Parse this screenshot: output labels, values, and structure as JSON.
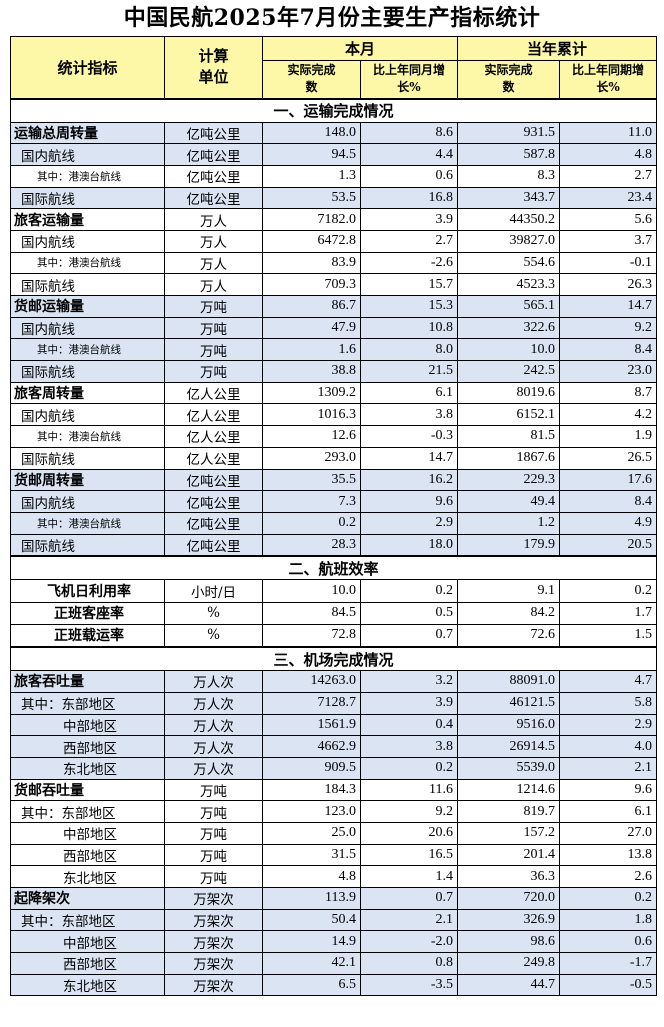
{
  "title": "中国民航2025年7月份主要生产指标统计",
  "header": {
    "col_indicator": "统计指标",
    "col_unit": "计算单位",
    "col_month": "本月",
    "col_ytd": "当年累计",
    "sub_actual": "实际完成数",
    "sub_growth_month": "比上年同月增长%",
    "sub_growth_ytd": "比上年同期增长%"
  },
  "sections": [
    {
      "title": "一、运输完成情况",
      "rows": [
        {
          "label": "运输总周转量",
          "level": "bold",
          "unit": "亿吨公里",
          "m_actual": "148.0",
          "m_growth": "8.6",
          "y_actual": "931.5",
          "y_growth": "11.0",
          "bg": "blue"
        },
        {
          "label": "国内航线",
          "level": "l1",
          "unit": "亿吨公里",
          "m_actual": "94.5",
          "m_growth": "4.4",
          "y_actual": "587.8",
          "y_growth": "4.8",
          "bg": "blue"
        },
        {
          "label": "其中：港澳台航线",
          "level": "l2",
          "unit": "亿吨公里",
          "m_actual": "1.3",
          "m_growth": "0.6",
          "y_actual": "8.3",
          "y_growth": "2.7",
          "bg": "white"
        },
        {
          "label": "国际航线",
          "level": "l1",
          "unit": "亿吨公里",
          "m_actual": "53.5",
          "m_growth": "16.8",
          "y_actual": "343.7",
          "y_growth": "23.4",
          "bg": "blue"
        },
        {
          "label": "旅客运输量",
          "level": "bold",
          "unit": "万人",
          "m_actual": "7182.0",
          "m_growth": "3.9",
          "y_actual": "44350.2",
          "y_growth": "5.6",
          "bg": "white"
        },
        {
          "label": "国内航线",
          "level": "l1",
          "unit": "万人",
          "m_actual": "6472.8",
          "m_growth": "2.7",
          "y_actual": "39827.0",
          "y_growth": "3.7",
          "bg": "white"
        },
        {
          "label": "其中：港澳台航线",
          "level": "l2",
          "unit": "万人",
          "m_actual": "83.9",
          "m_growth": "-2.6",
          "y_actual": "554.6",
          "y_growth": "-0.1",
          "bg": "white"
        },
        {
          "label": "国际航线",
          "level": "l1",
          "unit": "万人",
          "m_actual": "709.3",
          "m_growth": "15.7",
          "y_actual": "4523.3",
          "y_growth": "26.3",
          "bg": "white"
        },
        {
          "label": "货邮运输量",
          "level": "bold",
          "unit": "万吨",
          "m_actual": "86.7",
          "m_growth": "15.3",
          "y_actual": "565.1",
          "y_growth": "14.7",
          "bg": "blue"
        },
        {
          "label": "国内航线",
          "level": "l1",
          "unit": "万吨",
          "m_actual": "47.9",
          "m_growth": "10.8",
          "y_actual": "322.6",
          "y_growth": "9.2",
          "bg": "blue"
        },
        {
          "label": "其中：港澳台航线",
          "level": "l2",
          "unit": "万吨",
          "m_actual": "1.6",
          "m_growth": "8.0",
          "y_actual": "10.0",
          "y_growth": "8.4",
          "bg": "blue"
        },
        {
          "label": "国际航线",
          "level": "l1",
          "unit": "万吨",
          "m_actual": "38.8",
          "m_growth": "21.5",
          "y_actual": "242.5",
          "y_growth": "23.0",
          "bg": "blue"
        },
        {
          "label": "旅客周转量",
          "level": "bold",
          "unit": "亿人公里",
          "m_actual": "1309.2",
          "m_growth": "6.1",
          "y_actual": "8019.6",
          "y_growth": "8.7",
          "bg": "white"
        },
        {
          "label": "国内航线",
          "level": "l1",
          "unit": "亿人公里",
          "m_actual": "1016.3",
          "m_growth": "3.8",
          "y_actual": "6152.1",
          "y_growth": "4.2",
          "bg": "white"
        },
        {
          "label": "其中：港澳台航线",
          "level": "l2",
          "unit": "亿人公里",
          "m_actual": "12.6",
          "m_growth": "-0.3",
          "y_actual": "81.5",
          "y_growth": "1.9",
          "bg": "white"
        },
        {
          "label": "国际航线",
          "level": "l1",
          "unit": "亿人公里",
          "m_actual": "293.0",
          "m_growth": "14.7",
          "y_actual": "1867.6",
          "y_growth": "26.5",
          "bg": "white"
        },
        {
          "label": "货邮周转量",
          "level": "bold",
          "unit": "亿吨公里",
          "m_actual": "35.5",
          "m_growth": "16.2",
          "y_actual": "229.3",
          "y_growth": "17.6",
          "bg": "blue"
        },
        {
          "label": "国内航线",
          "level": "l1",
          "unit": "亿吨公里",
          "m_actual": "7.3",
          "m_growth": "9.6",
          "y_actual": "49.4",
          "y_growth": "8.4",
          "bg": "blue"
        },
        {
          "label": "其中：港澳台航线",
          "level": "l2",
          "unit": "亿吨公里",
          "m_actual": "0.2",
          "m_growth": "2.9",
          "y_actual": "1.2",
          "y_growth": "4.9",
          "bg": "blue"
        },
        {
          "label": "国际航线",
          "level": "l1",
          "unit": "亿吨公里",
          "m_actual": "28.3",
          "m_growth": "18.0",
          "y_actual": "179.9",
          "y_growth": "20.5",
          "bg": "blue"
        }
      ]
    },
    {
      "title": "二、航班效率",
      "rows": [
        {
          "label": "飞机日利用率",
          "level": "eff",
          "unit": "小时/日",
          "m_actual": "10.0",
          "m_growth": "0.2",
          "y_actual": "9.1",
          "y_growth": "0.2",
          "bg": "white"
        },
        {
          "label": "正班客座率",
          "level": "eff",
          "unit": "%",
          "m_actual": "84.5",
          "m_growth": "0.5",
          "y_actual": "84.2",
          "y_growth": "1.7",
          "bg": "white"
        },
        {
          "label": "正班载运率",
          "level": "eff",
          "unit": "%",
          "m_actual": "72.8",
          "m_growth": "0.7",
          "y_actual": "72.6",
          "y_growth": "1.5",
          "bg": "white"
        }
      ]
    },
    {
      "title": "三、机场完成情况",
      "rows": [
        {
          "label": "旅客吞吐量",
          "level": "bold",
          "unit": "万人次",
          "m_actual": "14263.0",
          "m_growth": "3.2",
          "y_actual": "88091.0",
          "y_growth": "4.7",
          "bg": "blue"
        },
        {
          "label": "其中：东部地区",
          "level": "l1b",
          "unit": "万人次",
          "m_actual": "7128.7",
          "m_growth": "3.9",
          "y_actual": "46121.5",
          "y_growth": "5.8",
          "bg": "blue"
        },
        {
          "label": "中部地区",
          "level": "l2b",
          "unit": "万人次",
          "m_actual": "1561.9",
          "m_growth": "0.4",
          "y_actual": "9516.0",
          "y_growth": "2.9",
          "bg": "blue"
        },
        {
          "label": "西部地区",
          "level": "l2b",
          "unit": "万人次",
          "m_actual": "4662.9",
          "m_growth": "3.8",
          "y_actual": "26914.5",
          "y_growth": "4.0",
          "bg": "blue"
        },
        {
          "label": "东北地区",
          "level": "l2b",
          "unit": "万人次",
          "m_actual": "909.5",
          "m_growth": "0.2",
          "y_actual": "5539.0",
          "y_growth": "2.1",
          "bg": "blue"
        },
        {
          "label": "货邮吞吐量",
          "level": "bold",
          "unit": "万吨",
          "m_actual": "184.3",
          "m_growth": "11.6",
          "y_actual": "1214.6",
          "y_growth": "9.6",
          "bg": "white"
        },
        {
          "label": "其中：东部地区",
          "level": "l1b",
          "unit": "万吨",
          "m_actual": "123.0",
          "m_growth": "9.2",
          "y_actual": "819.7",
          "y_growth": "6.1",
          "bg": "white"
        },
        {
          "label": "中部地区",
          "level": "l2b",
          "unit": "万吨",
          "m_actual": "25.0",
          "m_growth": "20.6",
          "y_actual": "157.2",
          "y_growth": "27.0",
          "bg": "white"
        },
        {
          "label": "西部地区",
          "level": "l2b",
          "unit": "万吨",
          "m_actual": "31.5",
          "m_growth": "16.5",
          "y_actual": "201.4",
          "y_growth": "13.8",
          "bg": "white"
        },
        {
          "label": "东北地区",
          "level": "l2b",
          "unit": "万吨",
          "m_actual": "4.8",
          "m_growth": "1.4",
          "y_actual": "36.3",
          "y_growth": "2.6",
          "bg": "white"
        },
        {
          "label": "起降架次",
          "level": "bold",
          "unit": "万架次",
          "m_actual": "113.9",
          "m_growth": "0.7",
          "y_actual": "720.0",
          "y_growth": "0.2",
          "bg": "blue"
        },
        {
          "label": "其中：东部地区",
          "level": "l1b",
          "unit": "万架次",
          "m_actual": "50.4",
          "m_growth": "2.1",
          "y_actual": "326.9",
          "y_growth": "1.8",
          "bg": "blue"
        },
        {
          "label": "中部地区",
          "level": "l2b",
          "unit": "万架次",
          "m_actual": "14.9",
          "m_growth": "-2.0",
          "y_actual": "98.6",
          "y_growth": "0.6",
          "bg": "blue"
        },
        {
          "label": "西部地区",
          "level": "l2b",
          "unit": "万架次",
          "m_actual": "42.1",
          "m_growth": "0.8",
          "y_actual": "249.8",
          "y_growth": "-1.7",
          "bg": "blue"
        },
        {
          "label": "东北地区",
          "level": "l2b",
          "unit": "万架次",
          "m_actual": "6.5",
          "m_growth": "-3.5",
          "y_actual": "44.7",
          "y_growth": "-0.5",
          "bg": "blue"
        }
      ]
    }
  ]
}
